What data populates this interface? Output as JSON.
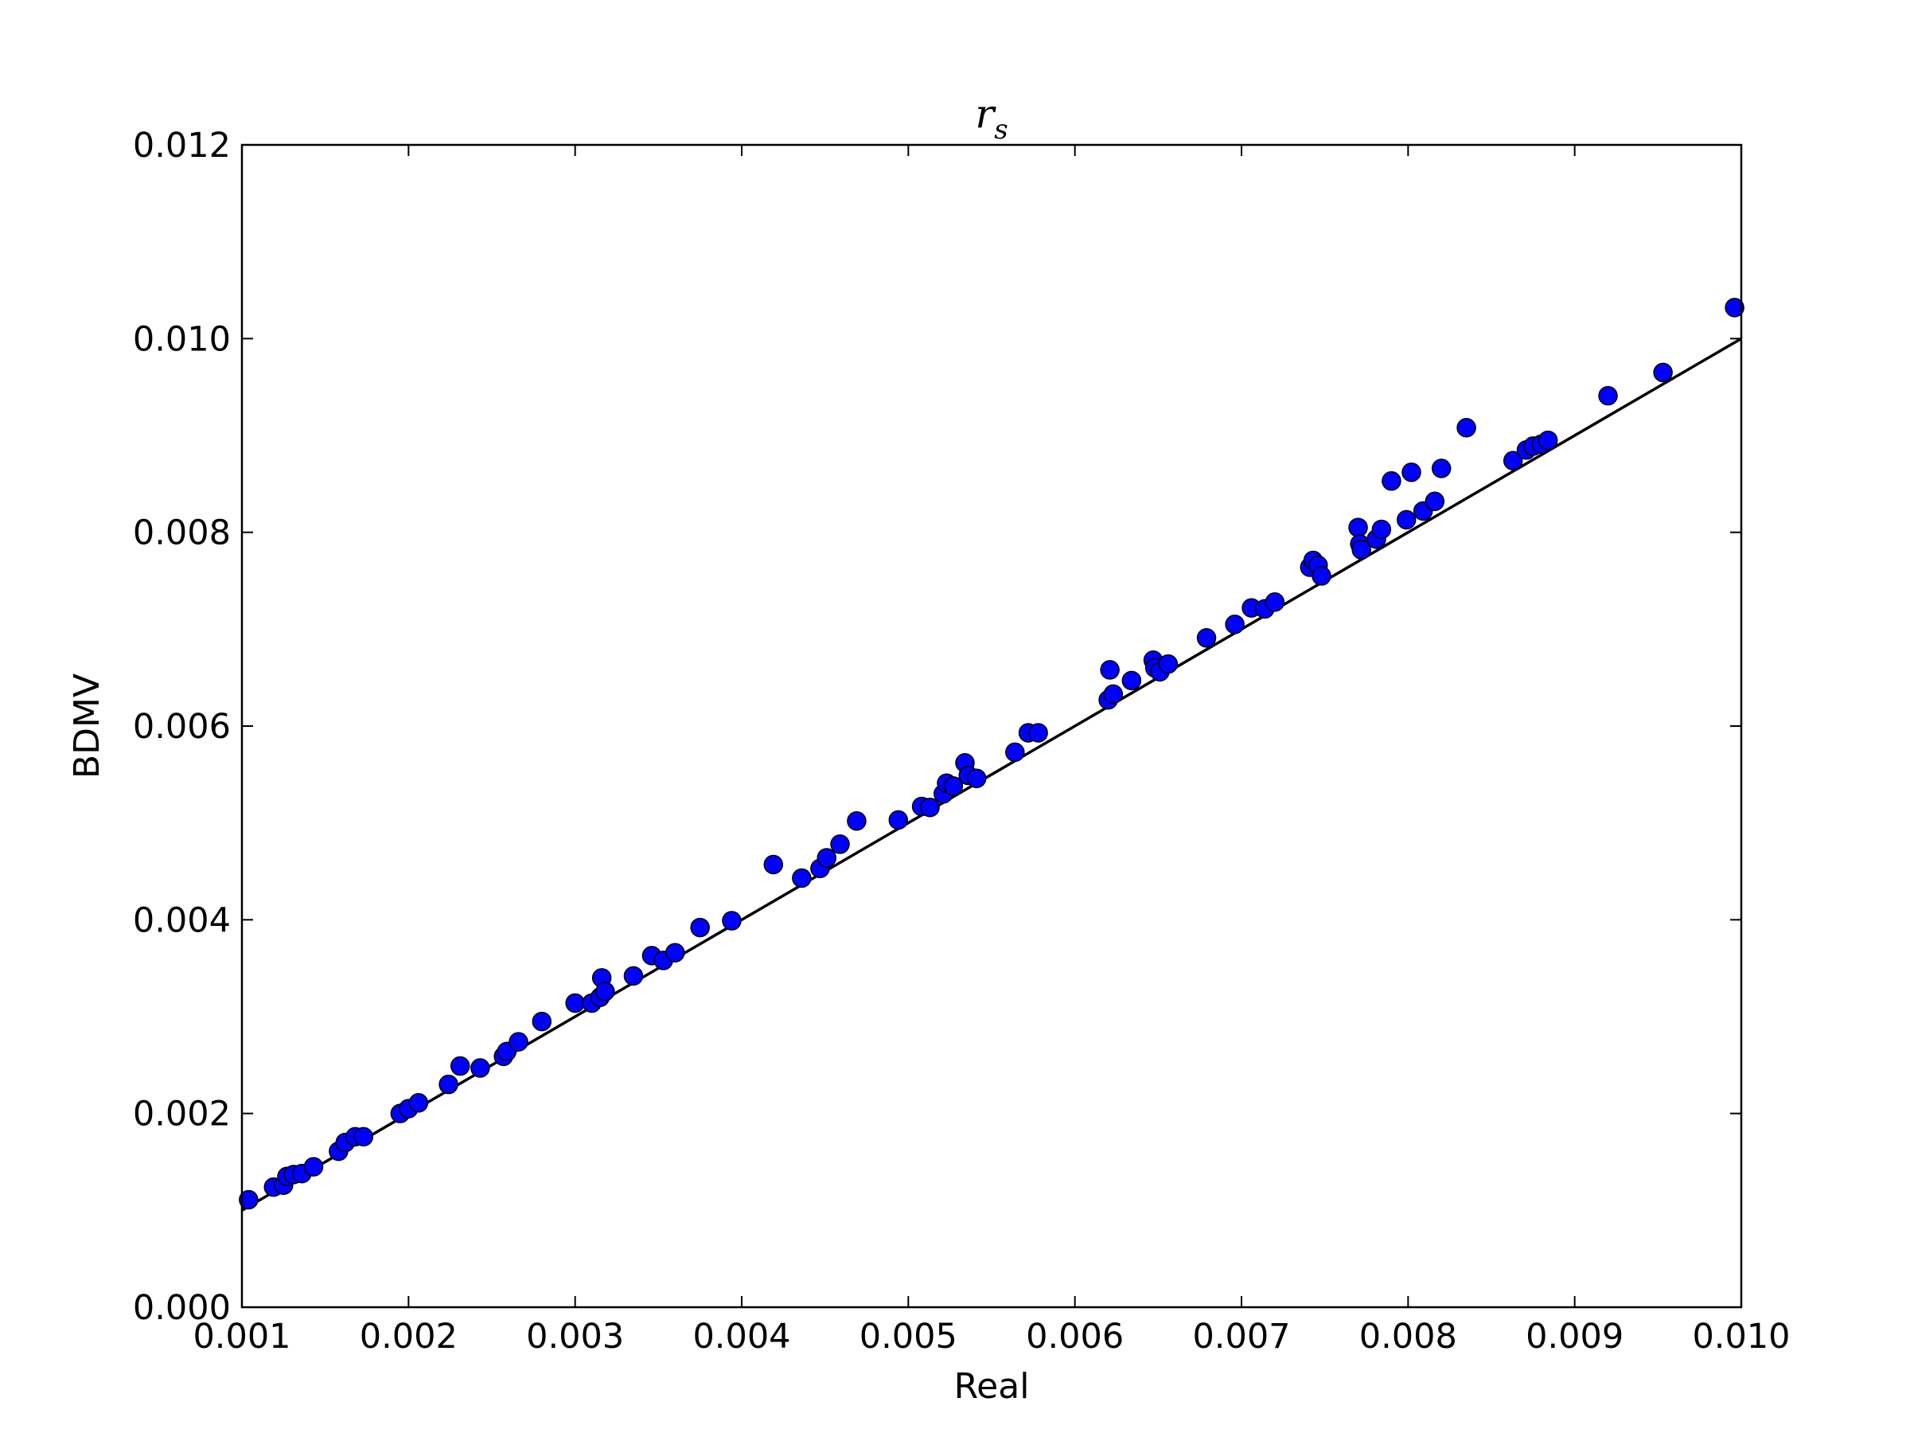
{
  "chart_data": {
    "type": "scatter",
    "title": "r",
    "title_subscript": "s",
    "xlabel": "Real",
    "ylabel": "BDMV",
    "xlim": [
      0.001,
      0.01
    ],
    "ylim": [
      0.0,
      0.012
    ],
    "xticks": [
      "0.001",
      "0.002",
      "0.003",
      "0.004",
      "0.005",
      "0.006",
      "0.007",
      "0.008",
      "0.009",
      "0.010"
    ],
    "yticks": [
      "0.000",
      "0.002",
      "0.004",
      "0.006",
      "0.008",
      "0.010",
      "0.012"
    ],
    "grid": false,
    "legend": "none",
    "marker_color": "#0000ff",
    "marker_edge_color": "#000000",
    "line_color": "#000000",
    "reference_line": {
      "x": [
        0.001,
        0.01
      ],
      "y": [
        0.001,
        0.01
      ]
    },
    "series": [
      {
        "x": [
          0.00104,
          0.00119,
          0.00125,
          0.00127,
          0.00131,
          0.00136,
          0.00143,
          0.00158,
          0.00162,
          0.00168,
          0.00173,
          0.00195,
          0.002,
          0.00206,
          0.00224,
          0.00231,
          0.00243,
          0.00257,
          0.00259,
          0.00266,
          0.0028,
          0.003,
          0.0031,
          0.00315,
          0.00316,
          0.00318,
          0.00335,
          0.00346,
          0.00353,
          0.0036,
          0.00375,
          0.00394,
          0.00419,
          0.00436,
          0.00447,
          0.00451,
          0.00459,
          0.00469,
          0.00494,
          0.00508,
          0.00513,
          0.00521,
          0.00523,
          0.00527,
          0.00534,
          0.00536,
          0.00541,
          0.00564,
          0.00572,
          0.00578,
          0.0062,
          0.00621,
          0.00623,
          0.00634,
          0.00647,
          0.00648,
          0.00651,
          0.00656,
          0.00679,
          0.00696,
          0.00706,
          0.00714,
          0.0072,
          0.00741,
          0.00743,
          0.00746,
          0.00748,
          0.0077,
          0.00771,
          0.00772,
          0.00781,
          0.00784,
          0.0079,
          0.00799,
          0.00802,
          0.00809,
          0.00816,
          0.0082,
          0.00835,
          0.00863,
          0.00871,
          0.00875,
          0.0088,
          0.00884,
          0.0092,
          0.00953,
          0.00996
        ],
        "y": [
          0.00111,
          0.00124,
          0.00126,
          0.00135,
          0.00137,
          0.00138,
          0.00145,
          0.00161,
          0.0017,
          0.00176,
          0.00176,
          0.002,
          0.00205,
          0.00211,
          0.0023,
          0.00249,
          0.00247,
          0.00259,
          0.00264,
          0.00274,
          0.00295,
          0.00314,
          0.00314,
          0.0032,
          0.0034,
          0.00326,
          0.00342,
          0.00363,
          0.00358,
          0.00366,
          0.00392,
          0.00399,
          0.00457,
          0.00443,
          0.00453,
          0.00464,
          0.00478,
          0.00502,
          0.00503,
          0.00517,
          0.00516,
          0.0053,
          0.00541,
          0.00538,
          0.00562,
          0.00549,
          0.00546,
          0.00573,
          0.00593,
          0.00593,
          0.00627,
          0.00658,
          0.00633,
          0.00647,
          0.00668,
          0.0066,
          0.00656,
          0.00664,
          0.00691,
          0.00705,
          0.00722,
          0.00721,
          0.00728,
          0.00764,
          0.00771,
          0.00766,
          0.00755,
          0.00805,
          0.00788,
          0.00782,
          0.00793,
          0.00803,
          0.00853,
          0.00813,
          0.00862,
          0.00822,
          0.00832,
          0.00866,
          0.00908,
          0.00874,
          0.00885,
          0.00889,
          0.00891,
          0.00895,
          0.00941,
          0.00965,
          0.01032
        ]
      }
    ]
  }
}
